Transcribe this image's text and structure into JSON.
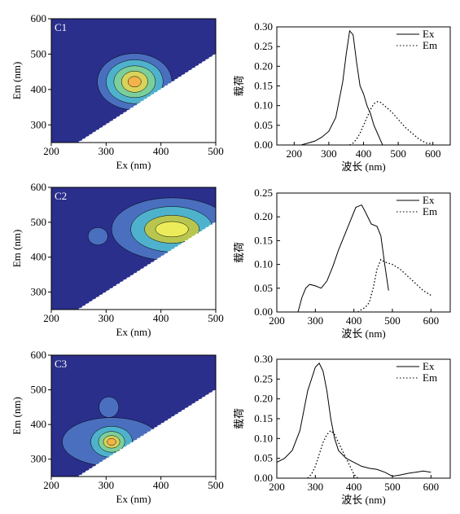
{
  "chart_data": [
    {
      "type": "heatmap",
      "panel_label": "C1",
      "xlabel": "Ex (nm)",
      "ylabel": "Em (nm)",
      "xlim": [
        200,
        500
      ],
      "ylim": [
        250,
        600
      ],
      "xticks": [
        200,
        300,
        400,
        500
      ],
      "yticks": [
        300,
        400,
        500,
        600
      ],
      "background_color": "#2a2f8c",
      "masked_region_color": "#ffffff",
      "peaks": [
        {
          "ex": 352,
          "em": 422,
          "levels": [
            {
              "color": "#4a6fbe",
              "rx": 68,
              "ry": 80
            },
            {
              "color": "#4fb2cd",
              "rx": 52,
              "ry": 62
            },
            {
              "color": "#7ccf9b",
              "rx": 38,
              "ry": 45
            },
            {
              "color": "#d8d35a",
              "rx": 24,
              "ry": 30
            },
            {
              "color": "#f4b34a",
              "rx": 12,
              "ry": 15
            }
          ]
        }
      ]
    },
    {
      "type": "line",
      "xlabel": "波长 (nm)",
      "ylabel": "载荷",
      "xlim": [
        150,
        650
      ],
      "ylim": [
        0,
        0.3
      ],
      "xticks": [
        200,
        300,
        400,
        500,
        600
      ],
      "yticks": [
        0.0,
        0.05,
        0.1,
        0.15,
        0.2,
        0.25,
        0.3
      ],
      "tick_format": "0.00",
      "legend": "top-right",
      "series": [
        {
          "name": "Ex",
          "style": "solid",
          "x": [
            220,
            240,
            260,
            280,
            300,
            320,
            340,
            350,
            360,
            370,
            380,
            390,
            400,
            410,
            420,
            430,
            440,
            450,
            455
          ],
          "y": [
            0.0,
            0.005,
            0.01,
            0.02,
            0.035,
            0.07,
            0.16,
            0.23,
            0.29,
            0.28,
            0.21,
            0.15,
            0.13,
            0.1,
            0.08,
            0.05,
            0.03,
            0.01,
            0.0
          ]
        },
        {
          "name": "Em",
          "style": "dotted",
          "x": [
            360,
            370,
            380,
            390,
            400,
            410,
            420,
            430,
            440,
            450,
            460,
            480,
            500,
            520,
            540,
            560,
            580,
            600
          ],
          "y": [
            0.0,
            0.005,
            0.015,
            0.03,
            0.05,
            0.07,
            0.09,
            0.105,
            0.11,
            0.108,
            0.1,
            0.085,
            0.065,
            0.045,
            0.03,
            0.015,
            0.005,
            0.003
          ]
        }
      ]
    },
    {
      "type": "heatmap",
      "panel_label": "C2",
      "xlabel": "Ex (nm)",
      "ylabel": "Em (nm)",
      "xlim": [
        200,
        500
      ],
      "ylim": [
        250,
        600
      ],
      "xticks": [
        200,
        300,
        400,
        500
      ],
      "yticks": [
        300,
        400,
        500,
        600
      ],
      "background_color": "#2a2f8c",
      "masked_region_color": "#ffffff",
      "peaks": [
        {
          "ex": 420,
          "em": 480,
          "levels": [
            {
              "color": "#4a6fbe",
              "rx": 110,
              "ry": 90
            },
            {
              "color": "#4fb2cd",
              "rx": 75,
              "ry": 65
            },
            {
              "color": "#b8c64f",
              "rx": 50,
              "ry": 40
            },
            {
              "color": "#ecec5a",
              "rx": 30,
              "ry": 22
            }
          ]
        },
        {
          "ex": 285,
          "em": 460,
          "levels": [
            {
              "color": "#4a6fbe",
              "rx": 18,
              "ry": 25
            }
          ]
        }
      ]
    },
    {
      "type": "line",
      "xlabel": "波长 (nm)",
      "ylabel": "载荷",
      "xlim": [
        200,
        650
      ],
      "ylim": [
        0,
        0.25
      ],
      "xticks": [
        200,
        300,
        400,
        500,
        600
      ],
      "yticks": [
        0.0,
        0.05,
        0.1,
        0.15,
        0.2,
        0.25
      ],
      "tick_format": "0.00",
      "legend": "top-right",
      "series": [
        {
          "name": "Ex",
          "style": "solid",
          "x": [
            255,
            265,
            275,
            285,
            300,
            315,
            330,
            345,
            360,
            375,
            390,
            405,
            420,
            430,
            445,
            460,
            470,
            480,
            490
          ],
          "y": [
            0.0,
            0.03,
            0.05,
            0.058,
            0.055,
            0.05,
            0.065,
            0.095,
            0.13,
            0.16,
            0.19,
            0.22,
            0.225,
            0.21,
            0.185,
            0.18,
            0.16,
            0.1,
            0.045
          ]
        },
        {
          "name": "Em",
          "style": "dotted",
          "x": [
            410,
            420,
            430,
            440,
            450,
            460,
            470,
            480,
            500,
            520,
            540,
            560,
            580,
            600
          ],
          "y": [
            0.0,
            0.005,
            0.01,
            0.02,
            0.05,
            0.09,
            0.11,
            0.105,
            0.1,
            0.09,
            0.075,
            0.06,
            0.045,
            0.035
          ]
        }
      ]
    },
    {
      "type": "heatmap",
      "panel_label": "C3",
      "xlabel": "Ex (nm)",
      "ylabel": "Em (nm)",
      "xlim": [
        200,
        500
      ],
      "ylim": [
        250,
        600
      ],
      "xticks": [
        200,
        300,
        400,
        500
      ],
      "yticks": [
        300,
        400,
        500,
        600
      ],
      "background_color": "#2a2f8c",
      "masked_region_color": "#ffffff",
      "peaks": [
        {
          "ex": 310,
          "em": 350,
          "levels": [
            {
              "color": "#4a6fbe",
              "rx": 90,
              "ry": 70
            },
            {
              "color": "#4fb2cd",
              "rx": 38,
              "ry": 45
            },
            {
              "color": "#7ccf9b",
              "rx": 24,
              "ry": 30
            },
            {
              "color": "#d8d35a",
              "rx": 15,
              "ry": 18
            },
            {
              "color": "#f4b34a",
              "rx": 8,
              "ry": 10
            }
          ]
        },
        {
          "ex": 305,
          "em": 450,
          "levels": [
            {
              "color": "#4a6fbe",
              "rx": 18,
              "ry": 30
            }
          ]
        }
      ]
    },
    {
      "type": "line",
      "xlabel": "波长 (nm)",
      "ylabel": "载荷",
      "xlim": [
        200,
        650
      ],
      "ylim": [
        0,
        0.3
      ],
      "xticks": [
        200,
        300,
        400,
        500,
        600
      ],
      "yticks": [
        0.0,
        0.05,
        0.1,
        0.15,
        0.2,
        0.25,
        0.3
      ],
      "tick_format": "0.00",
      "legend": "top-right",
      "series": [
        {
          "name": "Ex",
          "style": "solid",
          "x": [
            200,
            220,
            240,
            260,
            280,
            300,
            310,
            320,
            330,
            340,
            350,
            360,
            380,
            400,
            420,
            440,
            460,
            480,
            500,
            520,
            540,
            560,
            580,
            600
          ],
          "y": [
            0.04,
            0.05,
            0.07,
            0.12,
            0.22,
            0.28,
            0.29,
            0.27,
            0.22,
            0.15,
            0.1,
            0.07,
            0.05,
            0.04,
            0.03,
            0.025,
            0.022,
            0.015,
            0.005,
            0.008,
            0.012,
            0.015,
            0.018,
            0.015
          ]
        },
        {
          "name": "Em",
          "style": "dotted",
          "x": [
            280,
            290,
            300,
            310,
            320,
            330,
            340,
            350,
            360,
            370,
            380,
            390,
            400,
            410
          ],
          "y": [
            0.0,
            0.01,
            0.03,
            0.06,
            0.09,
            0.11,
            0.12,
            0.11,
            0.09,
            0.07,
            0.05,
            0.03,
            0.01,
            0.0
          ]
        }
      ]
    }
  ]
}
